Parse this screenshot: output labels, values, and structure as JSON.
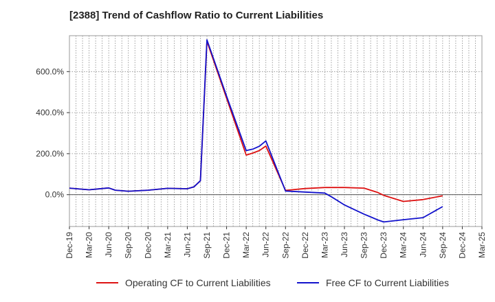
{
  "chart_data": {
    "type": "line",
    "title": "[2388]  Trend of Cashflow Ratio to Current Liabilities",
    "xlabel": "",
    "ylabel": "",
    "x": [
      "Dec-19",
      "Jan-20",
      "Feb-20",
      "Mar-20",
      "Apr-20",
      "May-20",
      "Jun-20",
      "Jul-20",
      "Aug-20",
      "Sep-20",
      "Oct-20",
      "Nov-20",
      "Dec-20",
      "Jan-21",
      "Feb-21",
      "Mar-21",
      "Apr-21",
      "May-21",
      "Jun-21",
      "Jul-21",
      "Aug-21",
      "Sep-21",
      "Oct-21",
      "Nov-21",
      "Dec-21",
      "Jan-22",
      "Feb-22",
      "Mar-22",
      "Apr-22",
      "May-22",
      "Jun-22",
      "Jul-22",
      "Aug-22",
      "Sep-22",
      "Oct-22",
      "Nov-22",
      "Dec-22",
      "Jan-23",
      "Feb-23",
      "Mar-23",
      "Apr-23",
      "May-23",
      "Jun-23",
      "Jul-23",
      "Aug-23",
      "Sep-23",
      "Oct-23",
      "Nov-23",
      "Dec-23",
      "Jan-24",
      "Feb-24",
      "Mar-24",
      "Apr-24",
      "May-24",
      "Jun-24",
      "Jul-24",
      "Aug-24",
      "Sep-24",
      "Oct-24",
      "Nov-24",
      "Dec-24",
      "Jan-25",
      "Feb-25",
      "Mar-25"
    ],
    "x_tick_labels": [
      "Dec-19",
      "Mar-20",
      "Jun-20",
      "Sep-20",
      "Dec-20",
      "Mar-21",
      "Jun-21",
      "Sep-21",
      "Dec-21",
      "Mar-22",
      "Jun-22",
      "Sep-22",
      "Dec-22",
      "Mar-23",
      "Jun-23",
      "Sep-23",
      "Dec-23",
      "Mar-24",
      "Jun-24",
      "Sep-24",
      "Dec-24",
      "Mar-25"
    ],
    "y_tick_labels": [
      "0.0%",
      "200.0%",
      "400.0%",
      "600.0%"
    ],
    "y_ticks": [
      0,
      200,
      400,
      600
    ],
    "ylim": [
      -155,
      775
    ],
    "grid": true,
    "legend": "bottom",
    "series": [
      {
        "name": "Operating CF to Current Liabilities",
        "color": "#dd1111",
        "points": [
          [
            "Dec-19",
            32
          ],
          [
            "Mar-20",
            24
          ],
          [
            "Jun-20",
            33
          ],
          [
            "Jul-20",
            22
          ],
          [
            "Sep-20",
            17
          ],
          [
            "Dec-20",
            22
          ],
          [
            "Mar-21",
            31
          ],
          [
            "Jun-21",
            29
          ],
          [
            "Jul-21",
            38
          ],
          [
            "Aug-21",
            68
          ],
          [
            "Sep-21",
            748
          ],
          [
            "Dec-21",
            470
          ],
          [
            "Mar-22",
            193
          ],
          [
            "Apr-22",
            203
          ],
          [
            "May-22",
            215
          ],
          [
            "Jun-22",
            237
          ],
          [
            "Sep-22",
            21
          ],
          [
            "Dec-22",
            30
          ],
          [
            "Mar-23",
            35
          ],
          [
            "Jun-23",
            35
          ],
          [
            "Sep-23",
            32
          ],
          [
            "Oct-23",
            22
          ],
          [
            "Nov-23",
            12
          ],
          [
            "Dec-23",
            -3
          ],
          [
            "Mar-24",
            -33
          ],
          [
            "Jun-24",
            -24
          ],
          [
            "Sep-24",
            -5
          ]
        ]
      },
      {
        "name": "Free CF to Current Liabilities",
        "color": "#1111cc",
        "points": [
          [
            "Dec-19",
            32
          ],
          [
            "Mar-20",
            24
          ],
          [
            "Jun-20",
            33
          ],
          [
            "Jul-20",
            22
          ],
          [
            "Sep-20",
            17
          ],
          [
            "Dec-20",
            22
          ],
          [
            "Mar-21",
            31
          ],
          [
            "Jun-21",
            29
          ],
          [
            "Jul-21",
            38
          ],
          [
            "Aug-21",
            68
          ],
          [
            "Sep-21",
            755
          ],
          [
            "Dec-21",
            480
          ],
          [
            "Mar-22",
            215
          ],
          [
            "Apr-22",
            222
          ],
          [
            "May-22",
            236
          ],
          [
            "Jun-22",
            262
          ],
          [
            "Sep-22",
            18
          ],
          [
            "Dec-22",
            13
          ],
          [
            "Mar-23",
            8
          ],
          [
            "Apr-23",
            -10
          ],
          [
            "May-23",
            -30
          ],
          [
            "Jun-23",
            -50
          ],
          [
            "Jul-23",
            -65
          ],
          [
            "Aug-23",
            -80
          ],
          [
            "Sep-23",
            -95
          ],
          [
            "Oct-23",
            -108
          ],
          [
            "Nov-23",
            -122
          ],
          [
            "Dec-23",
            -133
          ],
          [
            "Mar-24",
            -122
          ],
          [
            "Jun-24",
            -112
          ],
          [
            "Sep-24",
            -58
          ]
        ]
      }
    ]
  }
}
